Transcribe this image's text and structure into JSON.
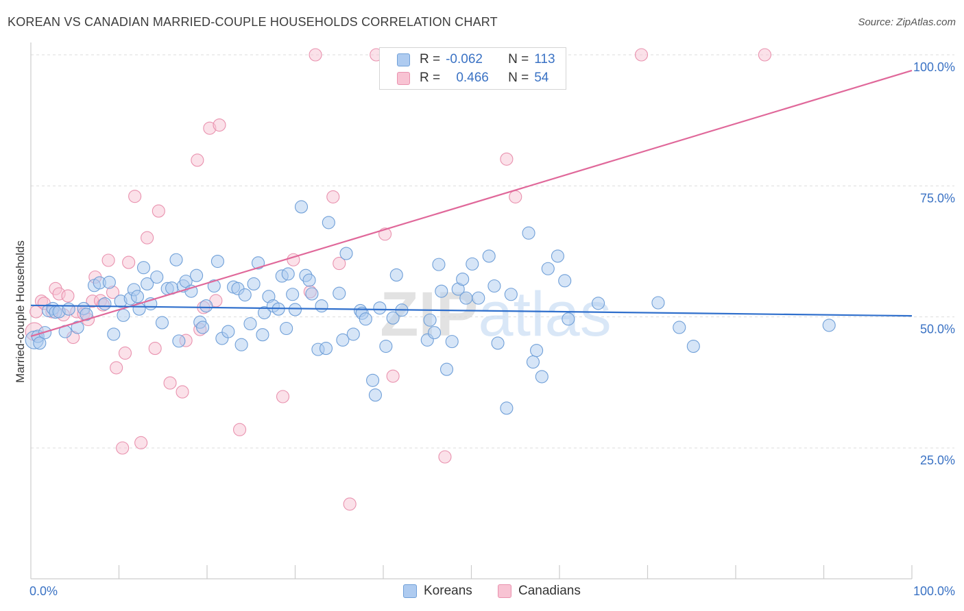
{
  "header": {
    "title": "KOREAN VS CANADIAN MARRIED-COUPLE HOUSEHOLDS CORRELATION CHART",
    "source": "Source: ZipAtlas.com"
  },
  "legend": {
    "rows": [
      {
        "r_label": "R =",
        "r_value": "-0.062",
        "n_label": "N =",
        "n_value": "113"
      },
      {
        "r_label": "R =",
        "r_value": "0.466",
        "n_label": "N =",
        "n_value": "54"
      }
    ],
    "bottom": [
      "Koreans",
      "Canadians"
    ]
  },
  "colors": {
    "koreans_fill": "#aecbf0",
    "koreans_stroke": "#6f9fd8",
    "koreans_line": "#2f6fcc",
    "canadians_fill": "#f8c3d3",
    "canadians_stroke": "#e991ae",
    "canadians_line": "#e0689a",
    "tick_text": "#3a72c4",
    "grid": "#dddddd"
  },
  "chart_data": {
    "type": "scatter",
    "title": "KOREAN VS CANADIAN MARRIED-COUPLE HOUSEHOLDS CORRELATION CHART",
    "xlabel": "",
    "ylabel": "Married-couple Households",
    "xlim": [
      0,
      100
    ],
    "ylim": [
      0,
      105
    ],
    "x_tick_labels": [
      "0.0%",
      "100.0%"
    ],
    "y_tick_labels": [
      "25.0%",
      "50.0%",
      "75.0%",
      "100.0%"
    ],
    "y_ticks": [
      25,
      50,
      75,
      100
    ],
    "grid": true,
    "watermark": "ZIPatlas",
    "series": [
      {
        "name": "Koreans",
        "r": -0.062,
        "n": 113,
        "trend": {
          "x": [
            0,
            100
          ],
          "y": [
            52.2,
            50.2
          ]
        },
        "points": [
          [
            0.4,
            45.6
          ],
          [
            0.8,
            46.3
          ],
          [
            1.0,
            45.0
          ],
          [
            1.6,
            47.0
          ],
          [
            2.0,
            51.2
          ],
          [
            2.5,
            51.6
          ],
          [
            2.8,
            50.9
          ],
          [
            3.2,
            51.0
          ],
          [
            3.9,
            47.2
          ],
          [
            4.3,
            51.5
          ],
          [
            5.3,
            48.0
          ],
          [
            6.0,
            51.6
          ],
          [
            6.3,
            50.5
          ],
          [
            7.2,
            56.0
          ],
          [
            7.8,
            56.5
          ],
          [
            8.4,
            52.5
          ],
          [
            8.9,
            56.6
          ],
          [
            9.4,
            46.7
          ],
          [
            10.2,
            53.0
          ],
          [
            10.5,
            50.3
          ],
          [
            11.3,
            53.5
          ],
          [
            11.7,
            55.2
          ],
          [
            12.1,
            53.9
          ],
          [
            12.3,
            51.5
          ],
          [
            12.8,
            59.4
          ],
          [
            13.2,
            56.3
          ],
          [
            13.6,
            52.5
          ],
          [
            14.3,
            57.6
          ],
          [
            14.9,
            48.9
          ],
          [
            15.5,
            55.4
          ],
          [
            16.0,
            55.5
          ],
          [
            16.5,
            60.9
          ],
          [
            16.8,
            45.4
          ],
          [
            17.3,
            55.9
          ],
          [
            17.6,
            56.8
          ],
          [
            18.2,
            54.9
          ],
          [
            18.8,
            57.9
          ],
          [
            19.2,
            49.0
          ],
          [
            19.5,
            48.0
          ],
          [
            19.9,
            52.1
          ],
          [
            20.8,
            55.9
          ],
          [
            21.2,
            60.6
          ],
          [
            21.7,
            45.9
          ],
          [
            22.4,
            47.2
          ],
          [
            23.0,
            55.7
          ],
          [
            23.5,
            55.4
          ],
          [
            23.9,
            44.7
          ],
          [
            24.3,
            54.2
          ],
          [
            24.9,
            48.7
          ],
          [
            25.3,
            56.3
          ],
          [
            25.8,
            60.3
          ],
          [
            26.3,
            46.6
          ],
          [
            26.5,
            50.8
          ],
          [
            27.0,
            53.9
          ],
          [
            27.5,
            52.1
          ],
          [
            28.1,
            51.5
          ],
          [
            28.5,
            57.8
          ],
          [
            29.0,
            47.8
          ],
          [
            29.2,
            58.2
          ],
          [
            29.7,
            54.3
          ],
          [
            30.0,
            51.4
          ],
          [
            30.7,
            71.0
          ],
          [
            31.2,
            57.9
          ],
          [
            31.6,
            57.0
          ],
          [
            31.9,
            54.4
          ],
          [
            32.6,
            43.8
          ],
          [
            33.0,
            52.1
          ],
          [
            33.5,
            44.0
          ],
          [
            33.8,
            68.0
          ],
          [
            35.0,
            54.5
          ],
          [
            35.4,
            45.6
          ],
          [
            35.8,
            62.1
          ],
          [
            36.6,
            46.7
          ],
          [
            37.4,
            51.2
          ],
          [
            37.6,
            50.7
          ],
          [
            38.0,
            49.6
          ],
          [
            38.8,
            37.9
          ],
          [
            39.1,
            35.1
          ],
          [
            39.6,
            51.7
          ],
          [
            40.3,
            44.4
          ],
          [
            41.1,
            49.8
          ],
          [
            41.5,
            58.0
          ],
          [
            42.1,
            51.3
          ],
          [
            45.0,
            45.6
          ],
          [
            45.3,
            49.4
          ],
          [
            45.8,
            47.0
          ],
          [
            46.3,
            60.0
          ],
          [
            46.6,
            54.9
          ],
          [
            47.2,
            40.0
          ],
          [
            47.8,
            45.3
          ],
          [
            48.5,
            55.3
          ],
          [
            49.0,
            57.2
          ],
          [
            49.4,
            53.6
          ],
          [
            50.1,
            60.1
          ],
          [
            50.8,
            53.6
          ],
          [
            52.0,
            61.6
          ],
          [
            52.6,
            55.9
          ],
          [
            53.0,
            45.0
          ],
          [
            54.0,
            32.6
          ],
          [
            54.5,
            54.3
          ],
          [
            56.5,
            66.0
          ],
          [
            57.0,
            41.4
          ],
          [
            57.4,
            43.6
          ],
          [
            58.0,
            38.6
          ],
          [
            58.7,
            59.2
          ],
          [
            59.8,
            61.6
          ],
          [
            60.6,
            56.9
          ],
          [
            61.0,
            49.6
          ],
          [
            64.4,
            52.6
          ],
          [
            71.2,
            52.7
          ],
          [
            73.6,
            48.0
          ],
          [
            75.2,
            44.4
          ],
          [
            90.6,
            48.4
          ]
        ]
      },
      {
        "name": "Canadians",
        "r": 0.466,
        "n": 54,
        "trend": {
          "x": [
            0,
            100
          ],
          "y": [
            46.3,
            97.0
          ]
        },
        "points": [
          [
            0.4,
            47.2
          ],
          [
            0.6,
            51.0
          ],
          [
            1.2,
            53.0
          ],
          [
            1.5,
            52.6
          ],
          [
            2.4,
            51.0
          ],
          [
            2.8,
            55.4
          ],
          [
            3.2,
            54.4
          ],
          [
            3.7,
            50.4
          ],
          [
            4.2,
            54.0
          ],
          [
            4.8,
            46.1
          ],
          [
            5.2,
            51.0
          ],
          [
            6.0,
            50.6
          ],
          [
            6.5,
            49.5
          ],
          [
            7.0,
            53.0
          ],
          [
            7.3,
            57.6
          ],
          [
            7.9,
            53.1
          ],
          [
            8.2,
            52.3
          ],
          [
            8.8,
            60.8
          ],
          [
            9.3,
            54.7
          ],
          [
            9.7,
            40.3
          ],
          [
            10.4,
            25.0
          ],
          [
            10.7,
            43.1
          ],
          [
            11.1,
            60.4
          ],
          [
            11.8,
            73.0
          ],
          [
            12.5,
            26.0
          ],
          [
            13.2,
            65.1
          ],
          [
            14.1,
            44.0
          ],
          [
            14.5,
            70.2
          ],
          [
            15.8,
            37.4
          ],
          [
            17.2,
            35.7
          ],
          [
            17.6,
            45.5
          ],
          [
            18.9,
            79.9
          ],
          [
            19.2,
            47.6
          ],
          [
            19.6,
            51.8
          ],
          [
            20.3,
            86.0
          ],
          [
            21.0,
            53.1
          ],
          [
            21.4,
            86.6
          ],
          [
            23.7,
            28.5
          ],
          [
            28.6,
            34.8
          ],
          [
            29.8,
            60.9
          ],
          [
            31.7,
            54.8
          ],
          [
            32.3,
            100.0
          ],
          [
            34.3,
            72.9
          ],
          [
            35.0,
            60.2
          ],
          [
            36.2,
            14.3
          ],
          [
            39.2,
            100.0
          ],
          [
            40.2,
            65.8
          ],
          [
            41.1,
            38.7
          ],
          [
            47.0,
            23.3
          ],
          [
            54.0,
            80.1
          ],
          [
            55.0,
            72.9
          ],
          [
            55.4,
            94.8
          ],
          [
            69.3,
            100.0
          ],
          [
            83.3,
            100.0
          ]
        ]
      }
    ]
  }
}
